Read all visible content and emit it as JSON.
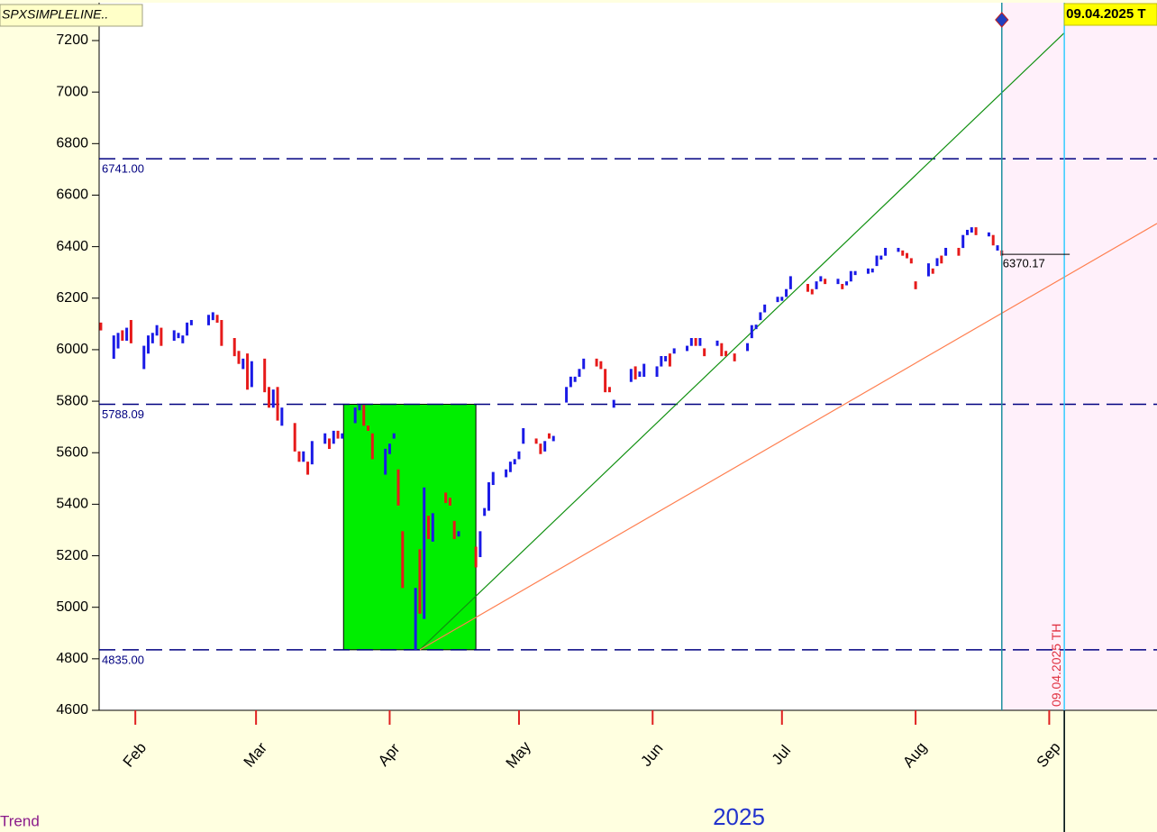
{
  "chart_data": {
    "type": "bar-range",
    "title": "SPXSIMPLELINE..",
    "xlabel": "2025",
    "footer": "Trend",
    "date_marker": "09.04.2025 TH",
    "date_box": "09.04.2025 T",
    "up_color": "#1a1ae6",
    "down_color": "#e61a1a",
    "xlim": [
      23.6,
      269
    ],
    "xticks": [
      {
        "value": 32,
        "label": "Feb"
      },
      {
        "value": 60,
        "label": "Mar"
      },
      {
        "value": 91,
        "label": "Apr"
      },
      {
        "value": 121,
        "label": "May"
      },
      {
        "value": 152,
        "label": "Jun"
      },
      {
        "value": 182,
        "label": "Jul"
      },
      {
        "value": 213,
        "label": "Aug"
      },
      {
        "value": 244,
        "label": "Sep"
      }
    ],
    "ylim": [
      4600,
      7340
    ],
    "yticks": [
      4600,
      4800,
      5000,
      5200,
      5400,
      5600,
      5800,
      6000,
      6200,
      6400,
      6600,
      6800,
      7000,
      7200
    ],
    "bars": [
      [
        24,
        6100,
        6080
      ],
      [
        27,
        5970,
        6050
      ],
      [
        28,
        6010,
        6060
      ],
      [
        29,
        6070,
        6040
      ],
      [
        30,
        6040,
        6080
      ],
      [
        31,
        6110,
        6030
      ],
      [
        34,
        5930,
        6010
      ],
      [
        35,
        5990,
        6050
      ],
      [
        36,
        6030,
        6060
      ],
      [
        37,
        6060,
        6090
      ],
      [
        38,
        6080,
        6020
      ],
      [
        41,
        6040,
        6070
      ],
      [
        42,
        6050,
        6060
      ],
      [
        43,
        6030,
        6050
      ],
      [
        44,
        6060,
        6100
      ],
      [
        45,
        6100,
        6110
      ],
      [
        49,
        6100,
        6130
      ],
      [
        50,
        6120,
        6140
      ],
      [
        51,
        6130,
        6110
      ],
      [
        52,
        6110,
        6020
      ],
      [
        55,
        6040,
        5980
      ],
      [
        56,
        5990,
        5950
      ],
      [
        57,
        5930,
        5960
      ],
      [
        58,
        5980,
        5850
      ],
      [
        59,
        5860,
        5950
      ],
      [
        62,
        5960,
        5840
      ],
      [
        63,
        5850,
        5780
      ],
      [
        64,
        5780,
        5840
      ],
      [
        65,
        5850,
        5730
      ],
      [
        66,
        5710,
        5770
      ],
      [
        69,
        5710,
        5610
      ],
      [
        70,
        5600,
        5570
      ],
      [
        71,
        5570,
        5600
      ],
      [
        72,
        5560,
        5520
      ],
      [
        73,
        5560,
        5640
      ],
      [
        76,
        5640,
        5670
      ],
      [
        77,
        5650,
        5620
      ],
      [
        78,
        5640,
        5680
      ],
      [
        79,
        5680,
        5660
      ],
      [
        80,
        5660,
        5670
      ],
      [
        83,
        5720,
        5770
      ],
      [
        84,
        5770,
        5780
      ],
      [
        85,
        5780,
        5710
      ],
      [
        86,
        5700,
        5690
      ],
      [
        87,
        5670,
        5580
      ],
      [
        90,
        5520,
        5610
      ],
      [
        91,
        5600,
        5630
      ],
      [
        92,
        5660,
        5670
      ],
      [
        93,
        5530,
        5400
      ],
      [
        94,
        5290,
        5080
      ],
      [
        97,
        4840,
        5070
      ],
      [
        98,
        5220,
        4980
      ],
      [
        99,
        4960,
        5460
      ],
      [
        100,
        5350,
        5270
      ],
      [
        101,
        5260,
        5360
      ],
      [
        104,
        5440,
        5410
      ],
      [
        105,
        5420,
        5400
      ],
      [
        106,
        5330,
        5270
      ],
      [
        107,
        5280,
        5290
      ],
      [
        111,
        5230,
        5160
      ],
      [
        112,
        5200,
        5290
      ],
      [
        113,
        5360,
        5380
      ],
      [
        114,
        5380,
        5480
      ],
      [
        115,
        5480,
        5520
      ],
      [
        118,
        5510,
        5530
      ],
      [
        119,
        5530,
        5560
      ],
      [
        120,
        5560,
        5570
      ],
      [
        121,
        5580,
        5600
      ],
      [
        122,
        5640,
        5690
      ],
      [
        125,
        5650,
        5640
      ],
      [
        126,
        5630,
        5600
      ],
      [
        127,
        5610,
        5640
      ],
      [
        128,
        5670,
        5660
      ],
      [
        129,
        5650,
        5660
      ],
      [
        132,
        5800,
        5850
      ],
      [
        133,
        5860,
        5890
      ],
      [
        134,
        5880,
        5890
      ],
      [
        135,
        5900,
        5920
      ],
      [
        136,
        5930,
        5960
      ],
      [
        139,
        5960,
        5940
      ],
      [
        140,
        5950,
        5930
      ],
      [
        141,
        5920,
        5840
      ],
      [
        142,
        5850,
        5840
      ],
      [
        143,
        5780,
        5800
      ],
      [
        147,
        5880,
        5920
      ],
      [
        148,
        5930,
        5890
      ],
      [
        149,
        5900,
        5910
      ],
      [
        150,
        5900,
        5940
      ],
      [
        153,
        5900,
        5930
      ],
      [
        154,
        5940,
        5970
      ],
      [
        155,
        5960,
        5970
      ],
      [
        156,
        5980,
        5940
      ],
      [
        157,
        5990,
        6000
      ],
      [
        160,
        6000,
        6010
      ],
      [
        161,
        6020,
        6040
      ],
      [
        162,
        6040,
        6020
      ],
      [
        163,
        6020,
        6040
      ],
      [
        164,
        6000,
        5980
      ],
      [
        167,
        6020,
        6030
      ],
      [
        168,
        6020,
        5980
      ],
      [
        169,
        5990,
        5980
      ],
      [
        171,
        5980,
        5960
      ],
      [
        174,
        6000,
        6020
      ],
      [
        175,
        6050,
        6090
      ],
      [
        176,
        6085,
        6092
      ],
      [
        177,
        6120,
        6140
      ],
      [
        178,
        6150,
        6170
      ],
      [
        181,
        6190,
        6200
      ],
      [
        182,
        6195,
        6200
      ],
      [
        183,
        6210,
        6230
      ],
      [
        184,
        6240,
        6280
      ],
      [
        188,
        6250,
        6230
      ],
      [
        189,
        6230,
        6220
      ],
      [
        190,
        6240,
        6260
      ],
      [
        191,
        6270,
        6280
      ],
      [
        192,
        6270,
        6260
      ],
      [
        195,
        6260,
        6270
      ],
      [
        196,
        6250,
        6240
      ],
      [
        197,
        6255,
        6260
      ],
      [
        198,
        6270,
        6300
      ],
      [
        199,
        6295,
        6300
      ],
      [
        202,
        6300,
        6310
      ],
      [
        203,
        6305,
        6310
      ],
      [
        204,
        6330,
        6360
      ],
      [
        205,
        6355,
        6360
      ],
      [
        206,
        6370,
        6390
      ],
      [
        209,
        6385,
        6390
      ],
      [
        210,
        6380,
        6370
      ],
      [
        211,
        6370,
        6360
      ],
      [
        212,
        6350,
        6340
      ],
      [
        213,
        6260,
        6240
      ],
      [
        216,
        6290,
        6330
      ],
      [
        217,
        6310,
        6300
      ],
      [
        218,
        6330,
        6350
      ],
      [
        219,
        6360,
        6340
      ],
      [
        220,
        6370,
        6390
      ],
      [
        223,
        6390,
        6370
      ],
      [
        224,
        6400,
        6440
      ],
      [
        225,
        6450,
        6460
      ],
      [
        226,
        6460,
        6470
      ],
      [
        227,
        6470,
        6450
      ],
      [
        230,
        6445,
        6450
      ],
      [
        231,
        6440,
        6410
      ],
      [
        232,
        6390,
        6400
      ],
      [
        233,
        6380,
        6370
      ]
    ],
    "levels": [
      {
        "value": 6741,
        "label": "6741.00"
      },
      {
        "value": 5788.09,
        "label": "5788.09"
      },
      {
        "value": 4835,
        "label": "4835.00"
      }
    ],
    "level_color": "#000080",
    "last_price": {
      "value": 6370.17,
      "label": "6370.17"
    },
    "box": {
      "x": [
        80.3,
        111
      ],
      "y": [
        4835,
        5788.09
      ],
      "color": "#00ee00"
    },
    "trendlines": [
      {
        "color": "#109010",
        "x": [
          98,
          247.5
        ],
        "y": [
          4835,
          7230
        ]
      },
      {
        "color": "#ff7f50",
        "x": [
          98,
          269
        ],
        "y": [
          4835,
          6490
        ]
      }
    ],
    "vlines": [
      {
        "x": 233,
        "color": "#1f8f9f"
      },
      {
        "x": 247.5,
        "color": "#33ccff"
      }
    ]
  }
}
